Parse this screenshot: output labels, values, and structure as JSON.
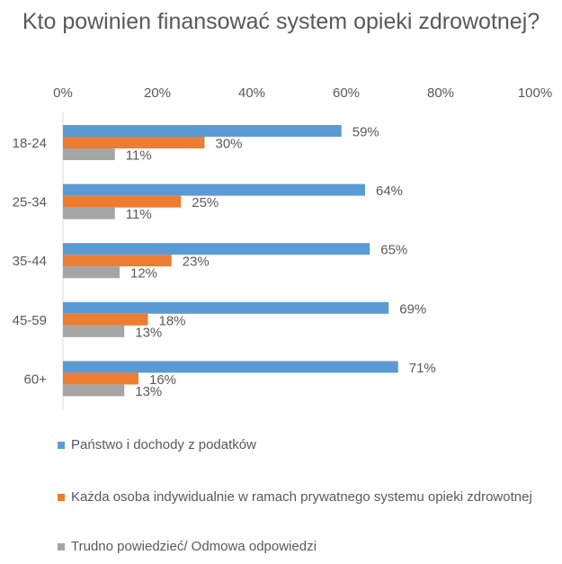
{
  "chart_data": {
    "type": "bar",
    "orientation": "horizontal",
    "title": "Kto powinien finansować system opieki zdrowotnej?",
    "categories": [
      "18-24",
      "25-34",
      "35-44",
      "45-59",
      "60+"
    ],
    "series": [
      {
        "name": "Państwo i dochody z podatków",
        "color": "#5b9bd5",
        "values": [
          59,
          64,
          65,
          69,
          71
        ]
      },
      {
        "name": "Każda osoba indywidualnie w ramach prywatnego systemu opieki zdrowotnej",
        "color": "#ed7d31",
        "values": [
          30,
          25,
          23,
          18,
          16
        ]
      },
      {
        "name": "Trudno powiedzieć/ Odmowa odpowiedzi",
        "color": "#a5a5a5",
        "values": [
          11,
          11,
          12,
          13,
          13
        ]
      }
    ],
    "xlim": [
      0,
      100
    ],
    "xticks": [
      "0%",
      "20%",
      "40%",
      "60%",
      "80%",
      "100%"
    ],
    "xtick_values": [
      0,
      20,
      40,
      60,
      80,
      100
    ],
    "value_suffix": "%",
    "xlabel": "",
    "ylabel": "",
    "grid": false,
    "legend_position": "bottom"
  }
}
